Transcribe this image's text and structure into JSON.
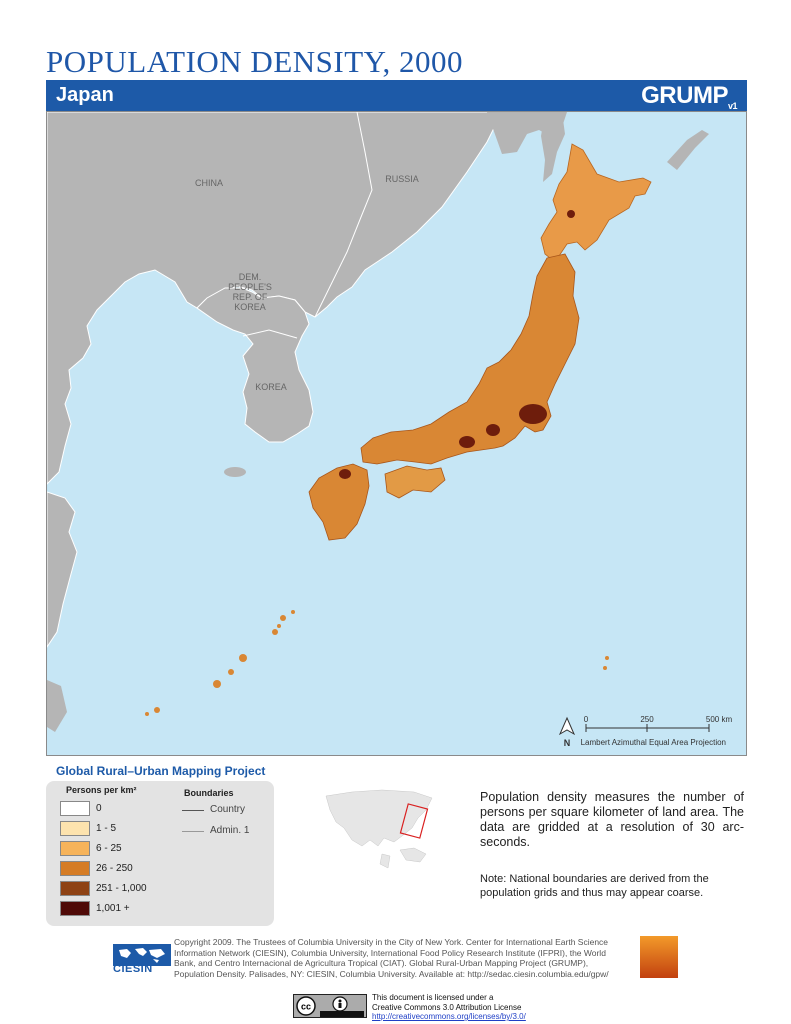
{
  "header": {
    "title": "POPULATION DENSITY, 2000",
    "country": "Japan",
    "logo_main": "GRUMP",
    "logo_sub": "v1"
  },
  "map": {
    "labels": {
      "china": "CHINA",
      "russia": "RUSSIA",
      "dprk": [
        "DEM.",
        "PEOPLE'S",
        "REP. OF",
        "KOREA"
      ],
      "korea": "KOREA"
    },
    "scale": {
      "ticks": [
        "0",
        "250",
        "500 km"
      ]
    },
    "north": "N",
    "projection": "Lambert Azimuthal Equal Area Projection",
    "colors": {
      "water": "#c6e6f5",
      "land": "#b5b5b5",
      "border": "#ffffff"
    }
  },
  "project_title": "Global Rural–Urban Mapping Project",
  "legend": {
    "title": "Persons per km²",
    "classes": [
      {
        "label": "0",
        "color": "#ffffff"
      },
      {
        "label": "1 - 5",
        "color": "#fde3ae"
      },
      {
        "label": "6 - 25",
        "color": "#f6b35a"
      },
      {
        "label": "26 - 250",
        "color": "#d57c25"
      },
      {
        "label": "251 - 1,000",
        "color": "#8e4214"
      },
      {
        "label": "1,001 +",
        "color": "#4f0a07"
      }
    ],
    "boundaries_title": "Boundaries",
    "boundaries": [
      {
        "label": "Country",
        "color": "#555555"
      },
      {
        "label": "Admin. 1",
        "color": "#999999"
      }
    ]
  },
  "description": "Population density measures the number of persons per square kilometer of land area. The data are gridded at a resolution of 30 arc-seconds.",
  "note": "Note: National boundaries are derived from the population grids and thus may appear coarse.",
  "footer": {
    "ciesin": "CIESIN",
    "copyright": "Copyright 2009. The Trustees of Columbia University in the City of New York. Center for International Earth Science Information Network (CIESIN), Columbia University, International Food Policy Research Institute (IFPRI), the World Bank, and Centro Internacional de Agricultura Tropical (CIAT). Global Rural-Urban Mapping Project (GRUMP), Population Density. Palisades, NY: CIESIN, Columbia University. Available at: http://sedac.ciesin.columbia.edu/gpw/",
    "license_line1": "This document is licensed under a",
    "license_line2": "Creative Commons 3.0 Attribution License",
    "license_url": "http://creativecommons.org/licenses/by/3.0/"
  }
}
